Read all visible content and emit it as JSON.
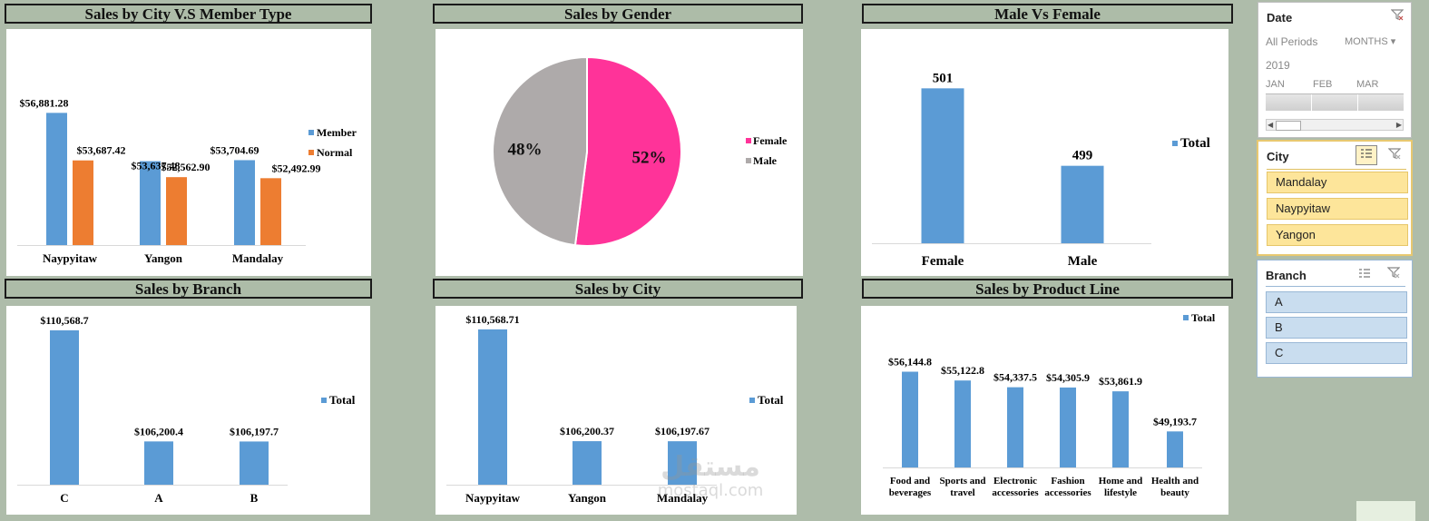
{
  "charts": {
    "city_member": {
      "title": "Sales by City V.S Member Type"
    },
    "gender": {
      "title": "Sales by Gender"
    },
    "male_female": {
      "title": "Male Vs Female"
    },
    "branch": {
      "title": "Sales by Branch"
    },
    "city": {
      "title": "Sales by City"
    },
    "product": {
      "title": "Sales by Product Line"
    }
  },
  "chart_data": [
    {
      "id": "city_member",
      "type": "bar",
      "title": "Sales by City V.S Member Type",
      "categories": [
        "Naypyitaw",
        "Yangon",
        "Mandalay"
      ],
      "series": [
        {
          "name": "Member",
          "color": "#5b9bd5",
          "values": [
            56881.28,
            53637.48,
            53704.69
          ],
          "labels": [
            "$56,881.28",
            "$53,637.48",
            "$53,704.69"
          ]
        },
        {
          "name": "Normal",
          "color": "#ed7d31",
          "values": [
            53687.42,
            52562.9,
            52492.99
          ],
          "labels": [
            "$53,687.42",
            "$52,562.90",
            "$52,492.99"
          ]
        }
      ],
      "ylim": [
        48000,
        58000
      ],
      "legend": "right"
    },
    {
      "id": "gender",
      "type": "pie",
      "title": "Sales by Gender",
      "categories": [
        "Female",
        "Male"
      ],
      "values": [
        52,
        48
      ],
      "labels": [
        "52%",
        "48%"
      ],
      "colors": [
        "#ff3399",
        "#aeaaaa"
      ],
      "legend": "right"
    },
    {
      "id": "male_female",
      "type": "bar",
      "title": "Male Vs Female",
      "categories": [
        "Female",
        "Male"
      ],
      "series": [
        {
          "name": "Total",
          "color": "#5b9bd5",
          "values": [
            501,
            499
          ],
          "labels": [
            "501",
            "499"
          ]
        }
      ],
      "ylim": [
        497,
        501.5
      ],
      "legend": "right"
    },
    {
      "id": "branch",
      "type": "bar",
      "title": "Sales by Branch",
      "categories": [
        "C",
        "A",
        "B"
      ],
      "series": [
        {
          "name": "Total",
          "color": "#5b9bd5",
          "values": [
            110568.7,
            106200.4,
            106197.7
          ],
          "labels": [
            "$110,568.7",
            "$106,200.4",
            "$106,197.7"
          ]
        }
      ],
      "ylim": [
        104500,
        110600
      ],
      "legend": "right"
    },
    {
      "id": "city",
      "type": "bar",
      "title": "Sales by City",
      "categories": [
        "Naypyitaw",
        "Yangon",
        "Mandalay"
      ],
      "series": [
        {
          "name": "Total",
          "color": "#5b9bd5",
          "values": [
            110568.71,
            106200.37,
            106197.67
          ],
          "labels": [
            "$110,568.71",
            "$106,200.37",
            "$106,197.67"
          ]
        }
      ],
      "ylim": [
        104500,
        110600
      ],
      "legend": "right"
    },
    {
      "id": "product",
      "type": "bar",
      "title": "Sales by Product Line",
      "categories": [
        "Food and beverages",
        "Sports and travel",
        "Electronic accessories",
        "Fashion accessories",
        "Home and lifestyle",
        "Health and beauty"
      ],
      "category_lines": [
        [
          "Food and",
          "beverages"
        ],
        [
          "Sports and",
          "travel"
        ],
        [
          "Electronic",
          "accessories"
        ],
        [
          "Fashion",
          "accessories"
        ],
        [
          "Home and",
          "lifestyle"
        ],
        [
          "Health and",
          "beauty"
        ]
      ],
      "series": [
        {
          "name": "Total",
          "color": "#5b9bd5",
          "values": [
            56144.8,
            55122.8,
            54337.5,
            54305.9,
            53861.9,
            49193.7
          ],
          "labels": [
            "$56,144.8",
            "$55,122.8",
            "$54,337.5",
            "$54,305.9",
            "$53,861.9",
            "$49,193.7"
          ]
        }
      ],
      "ylim": [
        45000,
        56200
      ],
      "legend": "top-right"
    }
  ],
  "date_slicer": {
    "title": "Date",
    "all_periods": "All Periods",
    "unit": "MONTHS",
    "year": "2019",
    "months": [
      "JAN",
      "FEB",
      "MAR"
    ]
  },
  "city_slicer": {
    "title": "City",
    "items": [
      "Mandalay",
      "Naypyitaw",
      "Yangon"
    ]
  },
  "branch_slicer": {
    "title": "Branch",
    "items": [
      "A",
      "B",
      "C"
    ]
  },
  "watermark": {
    "text": "مستقل",
    "sub": "mostaql.com"
  },
  "colors": {
    "background": "#aebcaa",
    "blue": "#5b9bd5",
    "orange": "#ed7d31",
    "pink": "#ff3399",
    "gray": "#aeaaaa"
  }
}
